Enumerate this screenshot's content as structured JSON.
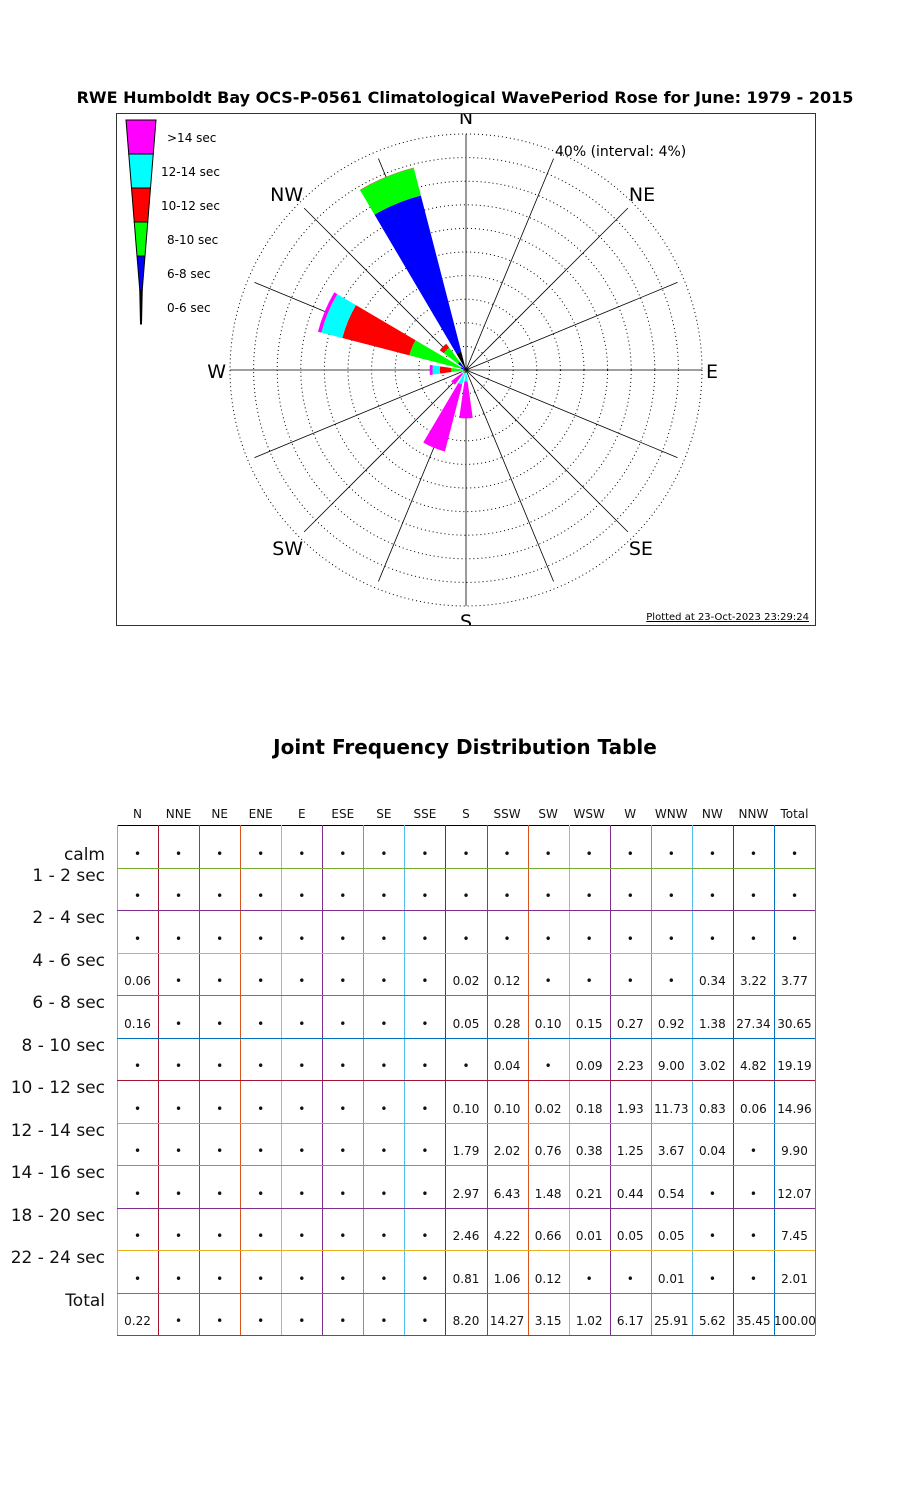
{
  "chart_data": [
    {
      "type": "wind-rose",
      "title": "RWE Humboldt Bay OCS-P-0561 Climatological WavePeriod Rose for June: 1979 - 2015",
      "scale_label": "40% (interval: 4%)",
      "rmax": 40,
      "interval": 4,
      "compass_labels": [
        "N",
        "NE",
        "E",
        "SE",
        "S",
        "SW",
        "W",
        "NW"
      ],
      "legend": [
        {
          "label": ">14 sec",
          "color": "#ff00ff"
        },
        {
          "label": "12-14 sec",
          "color": "#00ffff"
        },
        {
          "label": "10-12 sec",
          "color": "#ff0000"
        },
        {
          "label": "8-10 sec",
          "color": "#00ff00"
        },
        {
          "label": "6-8 sec",
          "color": "#0000ff"
        },
        {
          "label": "0-6 sec",
          "color": "#000000"
        }
      ],
      "plotted_at": "Plotted at 23-Oct-2023 23:29:24"
    },
    {
      "type": "table",
      "title": "Joint Frequency Distribution Table",
      "columns": [
        "N",
        "NNE",
        "NE",
        "ENE",
        "E",
        "ESE",
        "SE",
        "SSE",
        "S",
        "SSW",
        "SW",
        "WSW",
        "W",
        "WNW",
        "NW",
        "NNW",
        "Total"
      ],
      "rows": [
        {
          "label": "calm",
          "values": [
            "•",
            "•",
            "•",
            "•",
            "•",
            "•",
            "•",
            "•",
            "•",
            "•",
            "•",
            "•",
            "•",
            "•",
            "•",
            "•",
            "•"
          ]
        },
        {
          "label": "1 - 2  sec",
          "values": [
            "•",
            "•",
            "•",
            "•",
            "•",
            "•",
            "•",
            "•",
            "•",
            "•",
            "•",
            "•",
            "•",
            "•",
            "•",
            "•",
            "•"
          ]
        },
        {
          "label": "2 - 4  sec",
          "values": [
            "•",
            "•",
            "•",
            "•",
            "•",
            "•",
            "•",
            "•",
            "•",
            "•",
            "•",
            "•",
            "•",
            "•",
            "•",
            "•",
            "•"
          ]
        },
        {
          "label": "4 - 6  sec",
          "values": [
            "0.06",
            "•",
            "•",
            "•",
            "•",
            "•",
            "•",
            "•",
            "0.02",
            "0.12",
            "•",
            "•",
            "•",
            "•",
            "0.34",
            "3.22",
            "3.77"
          ]
        },
        {
          "label": "6 - 8  sec",
          "values": [
            "0.16",
            "•",
            "•",
            "•",
            "•",
            "•",
            "•",
            "•",
            "0.05",
            "0.28",
            "0.10",
            "0.15",
            "0.27",
            "0.92",
            "1.38",
            "27.34",
            "30.65"
          ]
        },
        {
          "label": "8 - 10 sec",
          "values": [
            "•",
            "•",
            "•",
            "•",
            "•",
            "•",
            "•",
            "•",
            "•",
            "0.04",
            "•",
            "0.09",
            "2.23",
            "9.00",
            "3.02",
            "4.82",
            "19.19"
          ]
        },
        {
          "label": "10 - 12 sec",
          "values": [
            "•",
            "•",
            "•",
            "•",
            "•",
            "•",
            "•",
            "•",
            "0.10",
            "0.10",
            "0.02",
            "0.18",
            "1.93",
            "11.73",
            "0.83",
            "0.06",
            "14.96"
          ]
        },
        {
          "label": "12 - 14 sec",
          "values": [
            "•",
            "•",
            "•",
            "•",
            "•",
            "•",
            "•",
            "•",
            "1.79",
            "2.02",
            "0.76",
            "0.38",
            "1.25",
            "3.67",
            "0.04",
            "•",
            "9.90"
          ]
        },
        {
          "label": "14 - 16 sec",
          "values": [
            "•",
            "•",
            "•",
            "•",
            "•",
            "•",
            "•",
            "•",
            "2.97",
            "6.43",
            "1.48",
            "0.21",
            "0.44",
            "0.54",
            "•",
            "•",
            "12.07"
          ]
        },
        {
          "label": "18 - 20 sec",
          "values": [
            "•",
            "•",
            "•",
            "•",
            "•",
            "•",
            "•",
            "•",
            "2.46",
            "4.22",
            "0.66",
            "0.01",
            "0.05",
            "0.05",
            "•",
            "•",
            "7.45"
          ]
        },
        {
          "label": "22 - 24 sec",
          "values": [
            "•",
            "•",
            "•",
            "•",
            "•",
            "•",
            "•",
            "•",
            "0.81",
            "1.06",
            "0.12",
            "•",
            "•",
            "0.01",
            "•",
            "•",
            "2.01"
          ]
        },
        {
          "label": "Total",
          "values": [
            "0.22",
            "•",
            "•",
            "•",
            "•",
            "•",
            "•",
            "•",
            "8.20",
            "14.27",
            "3.15",
            "1.02",
            "6.17",
            "25.91",
            "5.62",
            "35.45",
            "100.00"
          ]
        }
      ]
    }
  ]
}
